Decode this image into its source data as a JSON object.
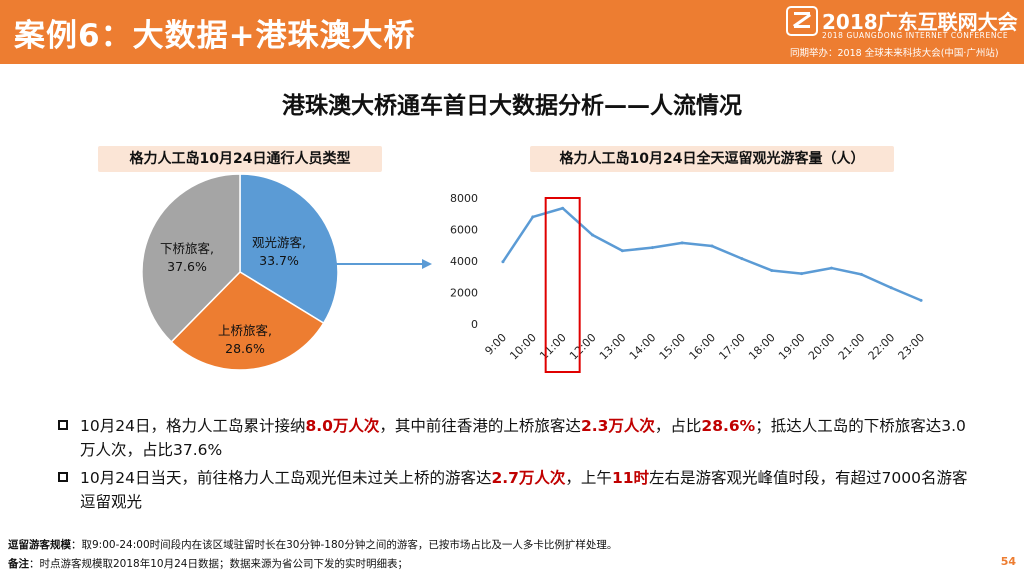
{
  "header": {
    "title": "案例6：大数据+港珠澳大桥",
    "logo_cn": "2018广东互联网大会",
    "logo_en": "2018 GUANGDONG INTERNET CONFERENCE",
    "logo_sub": "同期举办：2018 全球未来科技大会(中国·广州站)"
  },
  "main_title": "港珠澳大桥通车首日大数据分析——人流情况",
  "pie": {
    "box_label": "格力人工岛10月24日通行人员类型",
    "slices": [
      {
        "label": "观光游客,",
        "pct_label": "33.7%",
        "value": 33.7,
        "color": "#5b9bd5"
      },
      {
        "label": "上桥旅客,",
        "pct_label": "28.6%",
        "value": 28.6,
        "color": "#ed7d31"
      },
      {
        "label": "下桥旅客,",
        "pct_label": "37.6%",
        "value": 37.6,
        "color": "#a5a5a5"
      }
    ]
  },
  "line_box_label": "格力人工岛10月24日全天逗留观光游客量（人）",
  "chart_data": {
    "type": "line",
    "title": "格力人工岛10月24日全天逗留观光游客量（人）",
    "categories": [
      "9:00",
      "10:00",
      "11:00",
      "12:00",
      "13:00",
      "14:00",
      "15:00",
      "16:00",
      "17:00",
      "18:00",
      "19:00",
      "20:00",
      "21:00",
      "22:00",
      "23:00"
    ],
    "values": [
      3950,
      6800,
      7350,
      5650,
      4650,
      4850,
      5150,
      4950,
      4150,
      3400,
      3200,
      3550,
      3150,
      2300,
      1500
    ],
    "ylim": [
      0,
      8000
    ],
    "yticks": [
      "0",
      "2000",
      "4000",
      "6000",
      "8000"
    ],
    "highlight_category": "11:00",
    "color": "#5b9bd5",
    "highlight_color": "#e00000"
  },
  "bullets": [
    {
      "parts": [
        {
          "text": "10月24日，格力人工岛累计接纳",
          "em": false
        },
        {
          "text": "8.0万人次",
          "em": true
        },
        {
          "text": "，其中前往香港的上桥旅客达",
          "em": false
        },
        {
          "text": "2.3万人次",
          "em": true
        },
        {
          "text": "，占比",
          "em": false
        },
        {
          "text": "28.6%",
          "em": true
        },
        {
          "text": "；抵达人工岛的下桥旅客达3.0万人次，占比37.6%",
          "em": false
        }
      ]
    },
    {
      "parts": [
        {
          "text": "10月24日当天，前往格力人工岛观光但未过关上桥的游客达",
          "em": false
        },
        {
          "text": "2.7万人次",
          "em": true
        },
        {
          "text": "，上午",
          "em": false
        },
        {
          "text": "11时",
          "em": true
        },
        {
          "text": "左右是游客观光峰值时段，有超过7000名游客逗留观光",
          "em": false
        }
      ]
    }
  ],
  "notes": [
    {
      "label": "逗留游客规模",
      "text": "：取9:00-24:00时间段内在该区域驻留时长在30分钟-180分钟之间的游客，已按市场占比及一人多卡比例扩样处理。"
    },
    {
      "label": "备注",
      "text": "：时点游客规模取2018年10月24日数据；数据来源为省公司下发的实时明细表；"
    }
  ],
  "page_number": "54",
  "colors": {
    "accent": "#ed7d31",
    "box_bg": "#fbe5d6",
    "emphasis": "#c00000",
    "arrow": "#5b9bd5"
  }
}
